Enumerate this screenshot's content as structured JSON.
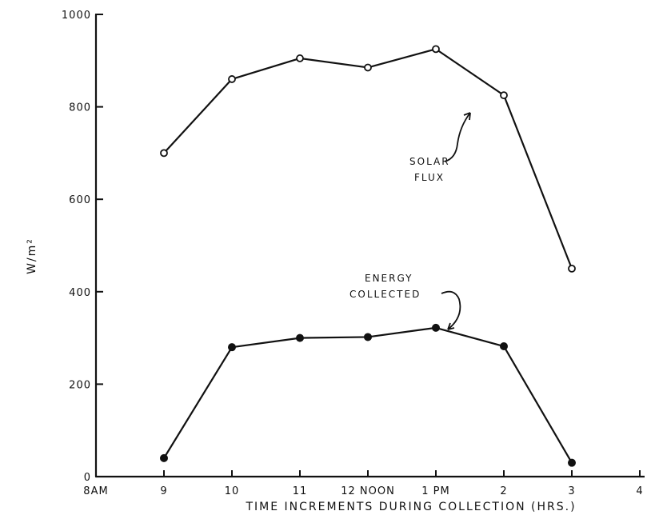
{
  "chart_data": {
    "type": "line",
    "title": "",
    "xlabel": "TIME INCREMENTS DURING COLLECTION (HRS.)",
    "ylabel": "W/m²",
    "x_categories": [
      "8AM",
      "9",
      "10",
      "11",
      "12 NOON",
      "1 PM",
      "2",
      "3",
      "4"
    ],
    "x": [
      8,
      9,
      10,
      11,
      12,
      13,
      14,
      15,
      16
    ],
    "xlim": [
      8,
      16
    ],
    "ylim": [
      0,
      1000
    ],
    "yticks": [
      0,
      200,
      400,
      600,
      800,
      1000
    ],
    "ytick_labels": [
      "0",
      "200",
      "400",
      "600",
      "800",
      "1000"
    ],
    "grid": false,
    "series": [
      {
        "name": "SOLAR FLUX",
        "marker": "open-circle",
        "x": [
          9,
          10,
          11,
          12,
          13,
          14,
          15
        ],
        "values": [
          700,
          860,
          905,
          885,
          925,
          825,
          450
        ]
      },
      {
        "name": "ENERGY COLLECTED",
        "marker": "filled-circle",
        "x": [
          9,
          10,
          11,
          12,
          13,
          14,
          15
        ],
        "values": [
          40,
          280,
          300,
          302,
          322,
          282,
          30
        ]
      }
    ],
    "annotations": [
      {
        "lines": [
          "SOLAR",
          "FLUX"
        ],
        "series": 0
      },
      {
        "lines": [
          "ENERGY",
          "COLLECTED"
        ],
        "series": 1
      }
    ],
    "colors": {
      "ink": "#111111",
      "background": "#ffffff"
    }
  }
}
